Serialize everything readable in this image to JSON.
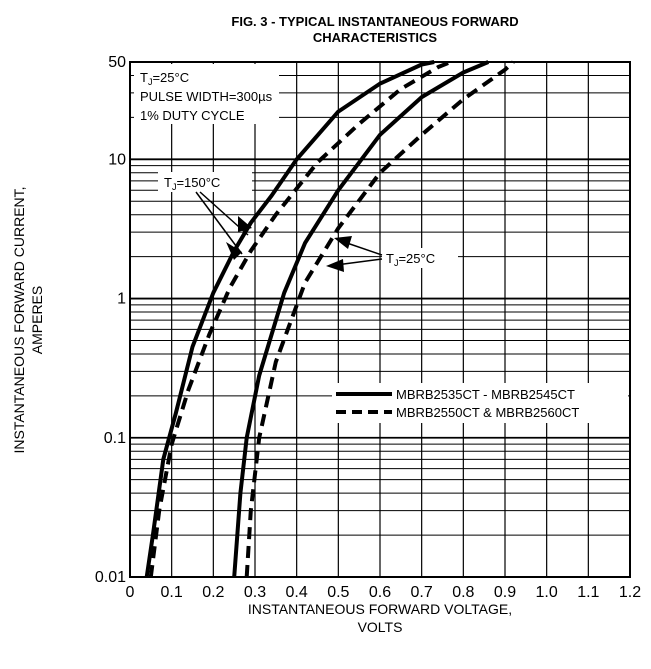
{
  "chart_data": {
    "type": "line",
    "title_line1": "FIG. 3 - TYPICAL INSTANTANEOUS FORWARD",
    "title_line2": "CHARACTERISTICS",
    "xlabel_line1": "INSTANTANEOUS FORWARD VOLTAGE,",
    "xlabel_line2": "VOLTS",
    "ylabel_line1": "INSTANTANEOUS FORWARD CURRENT,",
    "ylabel_line2": "AMPERES",
    "x_scale": "linear",
    "y_scale": "log",
    "xlim": [
      0,
      1.2
    ],
    "ylim": [
      0.01,
      50
    ],
    "x_ticks": [
      "0",
      "0.1",
      "0.2",
      "0.3",
      "0.4",
      "0.5",
      "0.6",
      "0.7",
      "0.8",
      "0.9",
      "1.0",
      "1.1",
      "1.2"
    ],
    "y_ticks": [
      {
        "value": 50,
        "label": "50"
      },
      {
        "value": 10,
        "label": "10"
      },
      {
        "value": 1,
        "label": "1"
      },
      {
        "value": 0.1,
        "label": "0.1"
      },
      {
        "value": 0.01,
        "label": "0.01"
      }
    ],
    "grid": true,
    "conditions": [
      "T J=25°C",
      "PULSE WIDTH=300µs",
      "1% DUTY CYCLE"
    ],
    "annotation_150": "TJ=150°C",
    "annotation_25": "TJ=25°C",
    "legend_placement": "lower-right",
    "series": [
      {
        "name": "MBRB2535CT - MBRB2545CT",
        "style": "solid",
        "temp": "150",
        "points": [
          [
            0.04,
            0.01
          ],
          [
            0.055,
            0.02
          ],
          [
            0.08,
            0.07
          ],
          [
            0.11,
            0.15
          ],
          [
            0.15,
            0.45
          ],
          [
            0.2,
            1.1
          ],
          [
            0.25,
            2.2
          ],
          [
            0.29,
            3.5
          ],
          [
            0.34,
            5.5
          ],
          [
            0.4,
            10
          ],
          [
            0.5,
            22
          ],
          [
            0.6,
            35
          ],
          [
            0.7,
            48
          ],
          [
            0.73,
            50
          ]
        ]
      },
      {
        "name": "MBRB2550CT & MBRB2560CT",
        "style": "dashed",
        "temp": "150",
        "points": [
          [
            0.05,
            0.01
          ],
          [
            0.07,
            0.03
          ],
          [
            0.1,
            0.09
          ],
          [
            0.14,
            0.22
          ],
          [
            0.19,
            0.55
          ],
          [
            0.24,
            1.2
          ],
          [
            0.29,
            2.2
          ],
          [
            0.35,
            4
          ],
          [
            0.45,
            9.5
          ],
          [
            0.55,
            18
          ],
          [
            0.65,
            32
          ],
          [
            0.74,
            46
          ],
          [
            0.77,
            50
          ]
        ]
      },
      {
        "name": "MBRB2535CT - MBRB2545CT",
        "style": "solid",
        "temp": "25",
        "points": [
          [
            0.25,
            0.01
          ],
          [
            0.265,
            0.04
          ],
          [
            0.28,
            0.1
          ],
          [
            0.31,
            0.28
          ],
          [
            0.37,
            1.1
          ],
          [
            0.42,
            2.5
          ],
          [
            0.5,
            6
          ],
          [
            0.6,
            15
          ],
          [
            0.7,
            28
          ],
          [
            0.8,
            42
          ],
          [
            0.86,
            50
          ]
        ]
      },
      {
        "name": "MBRB2550CT & MBRB2560CT",
        "style": "dashed",
        "temp": "25",
        "points": [
          [
            0.28,
            0.01
          ],
          [
            0.29,
            0.03
          ],
          [
            0.31,
            0.1
          ],
          [
            0.35,
            0.35
          ],
          [
            0.42,
            1.3
          ],
          [
            0.5,
            3.2
          ],
          [
            0.6,
            8
          ],
          [
            0.7,
            15
          ],
          [
            0.8,
            27
          ],
          [
            0.9,
            44
          ],
          [
            0.92,
            50
          ]
        ]
      }
    ]
  }
}
